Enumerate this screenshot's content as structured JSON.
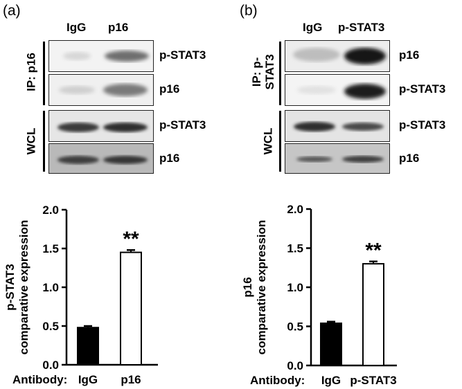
{
  "panel_a": {
    "label": "(a)",
    "columns": [
      "IgG",
      "p16"
    ],
    "ip_group": "IP: p16",
    "wcl_group": "WCL",
    "bands": [
      "p-STAT3",
      "p16",
      "p-STAT3",
      "p16"
    ]
  },
  "panel_b": {
    "label": "(b)",
    "columns": [
      "IgG",
      "p-STAT3"
    ],
    "ip_group_line1": "IP: p-",
    "ip_group_line2": "STAT3",
    "wcl_group": "WCL",
    "bands": [
      "p16",
      "p-STAT3",
      "p-STAT3",
      "p16"
    ]
  },
  "chart_data": [
    {
      "type": "bar",
      "categories": [
        "IgG",
        "p16"
      ],
      "values": [
        0.48,
        1.45
      ],
      "errors": [
        0.02,
        0.03
      ],
      "bar_colors": [
        "#000000",
        "#ffffff"
      ],
      "ylabel_line1": "p-STAT3",
      "ylabel_line2": "comparative expression",
      "xlabel": "Antibody:",
      "ylim": [
        0,
        2.0
      ],
      "yticks": [
        "0.0",
        "0.5",
        "1.0",
        "1.5",
        "2.0"
      ],
      "significance": "**"
    },
    {
      "type": "bar",
      "categories": [
        "IgG",
        "p-STAT3"
      ],
      "values": [
        0.54,
        1.3
      ],
      "errors": [
        0.02,
        0.03
      ],
      "bar_colors": [
        "#000000",
        "#ffffff"
      ],
      "ylabel_line1": "p16",
      "ylabel_line2": "comparative expression",
      "xlabel": "Antibody:",
      "ylim": [
        0,
        2.0
      ],
      "yticks": [
        "0.0",
        "0.5",
        "1.0",
        "1.5",
        "2.0"
      ],
      "significance": "**"
    }
  ]
}
